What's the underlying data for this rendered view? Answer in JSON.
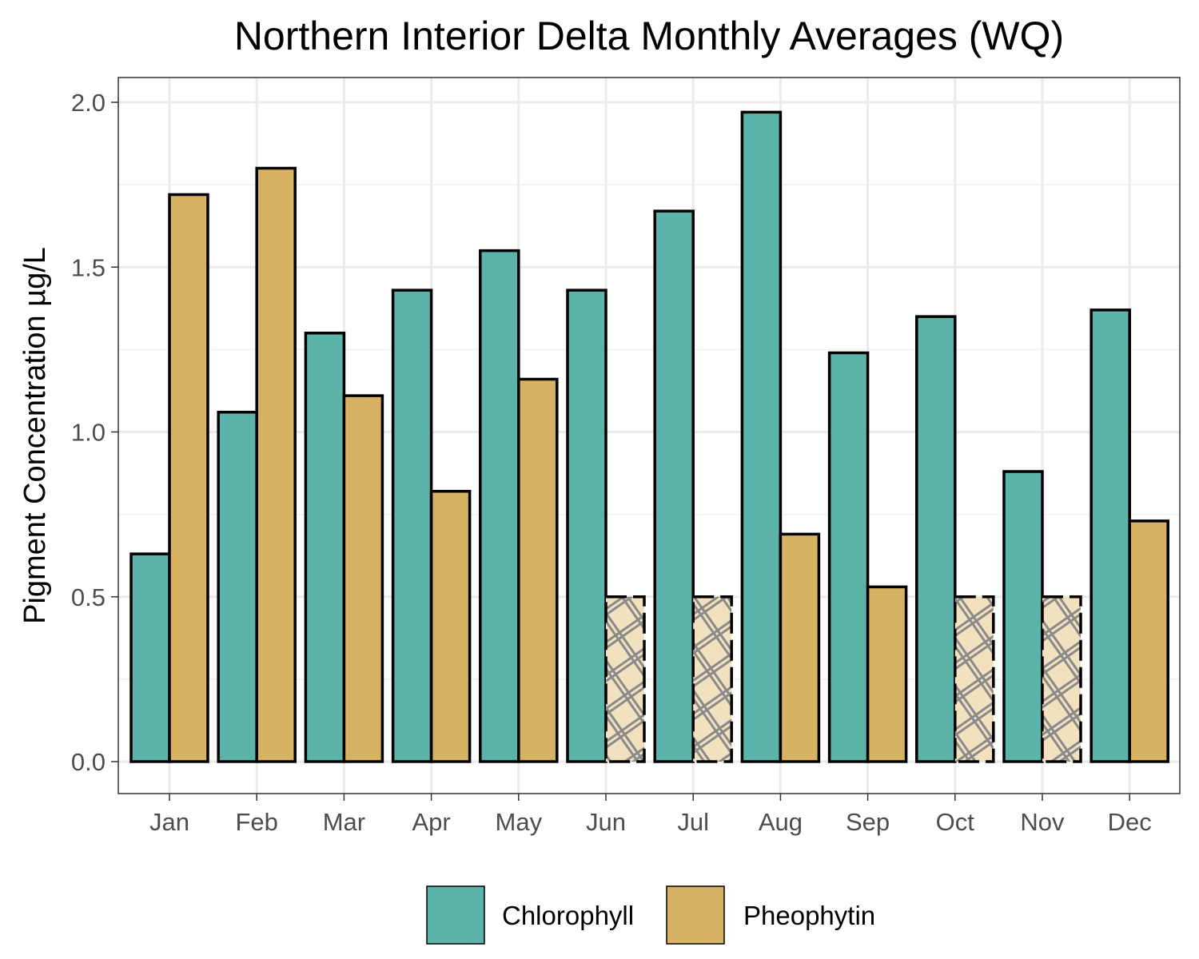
{
  "chart_data": {
    "type": "bar",
    "title": "Northern Interior Delta Monthly Averages (WQ)",
    "xlabel": "",
    "ylabel": "Pigment Concentration µg/L",
    "categories": [
      "Jan",
      "Feb",
      "Mar",
      "Apr",
      "May",
      "Jun",
      "Jul",
      "Aug",
      "Sep",
      "Oct",
      "Nov",
      "Dec"
    ],
    "series": [
      {
        "name": "Chlorophyll",
        "color": "#5BB3A9",
        "values": [
          0.63,
          1.06,
          1.3,
          1.43,
          1.55,
          1.43,
          1.67,
          1.97,
          1.24,
          1.35,
          0.88,
          1.37
        ]
      },
      {
        "name": "Pheophytin",
        "color": "#D7B263",
        "values": [
          1.72,
          1.8,
          1.11,
          0.82,
          1.16,
          0.5,
          0.5,
          0.69,
          0.53,
          0.5,
          0.5,
          0.73
        ],
        "hatched_months": [
          "Jun",
          "Jul",
          "Oct",
          "Nov"
        ]
      }
    ],
    "y_ticks": [
      "0.0",
      "0.5",
      "1.0",
      "1.5",
      "2.0"
    ],
    "ylim": [
      -0.1,
      2.07
    ],
    "grid": true,
    "legend_position": "bottom"
  }
}
